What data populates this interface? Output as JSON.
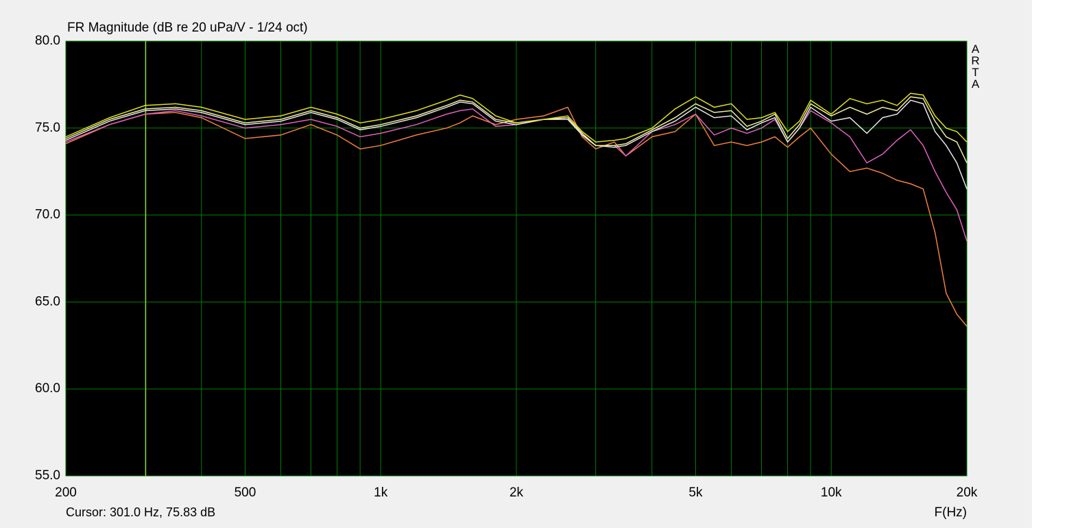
{
  "chart_data": {
    "type": "line",
    "title": "FR Magnitude (dB re 20 uPa/V - 1/24 oct)",
    "watermark": "ARTA",
    "x_label": "F(Hz)",
    "cursor": {
      "x": 301,
      "label": "Cursor: 301.0 Hz, 75.83 dB",
      "color": "#e0e040"
    },
    "log_x": true,
    "grid": true,
    "background": "#000000",
    "grid_color": "#008000",
    "xlim": [
      200,
      20000
    ],
    "ylim": [
      55,
      80
    ],
    "xticks": [
      200,
      500,
      {
        "value": 1000,
        "label": "1k"
      },
      {
        "value": 2000,
        "label": "2k"
      },
      {
        "value": 5000,
        "label": "5k"
      },
      {
        "value": 10000,
        "label": "10k"
      },
      {
        "value": 20000,
        "label": "20k"
      }
    ],
    "xgrid_minor": [
      300,
      400,
      600,
      700,
      800,
      900,
      3000,
      4000,
      6000,
      7000,
      8000,
      9000
    ],
    "yticks": [
      {
        "value": 55,
        "label": "55.0"
      },
      {
        "value": 60,
        "label": "60.0"
      },
      {
        "value": 65,
        "label": "65.0"
      },
      {
        "value": 70,
        "label": "70.0"
      },
      {
        "value": 75,
        "label": "75.0"
      },
      {
        "value": 80,
        "label": "80.0"
      }
    ],
    "x": [
      200,
      250,
      300,
      350,
      400,
      500,
      600,
      700,
      800,
      900,
      1000,
      1200,
      1400,
      1500,
      1600,
      1800,
      2000,
      2300,
      2600,
      2800,
      3000,
      3300,
      3500,
      4000,
      4500,
      5000,
      5500,
      6000,
      6500,
      7000,
      7500,
      8000,
      8500,
      9000,
      10000,
      11000,
      12000,
      13000,
      14000,
      15000,
      16000,
      17000,
      18000,
      19000,
      20000
    ],
    "series": [
      {
        "color": "#f08040",
        "values": [
          74.1,
          75.2,
          75.8,
          75.9,
          75.6,
          74.4,
          74.6,
          75.2,
          74.6,
          73.8,
          74.0,
          74.6,
          75.0,
          75.3,
          75.7,
          75.2,
          75.5,
          75.7,
          76.2,
          74.5,
          73.8,
          74.2,
          73.4,
          74.5,
          74.8,
          75.8,
          74.0,
          74.2,
          74.0,
          74.2,
          74.5,
          73.9,
          74.5,
          75.0,
          73.5,
          72.5,
          72.7,
          72.4,
          72.0,
          71.8,
          71.5,
          69.0,
          65.5,
          64.3,
          63.6
        ]
      },
      {
        "color": "#e060c0",
        "values": [
          74.2,
          75.2,
          75.8,
          76.0,
          75.7,
          75.0,
          75.2,
          75.5,
          75.1,
          74.5,
          74.7,
          75.2,
          75.8,
          76.0,
          76.1,
          75.1,
          75.2,
          75.5,
          75.6,
          74.6,
          74.0,
          74.0,
          73.4,
          74.8,
          75.2,
          75.8,
          74.6,
          75.0,
          74.7,
          75.0,
          75.5,
          74.2,
          75.0,
          76.0,
          75.3,
          74.5,
          73.0,
          73.5,
          74.3,
          74.9,
          74.0,
          72.5,
          71.3,
          70.3,
          68.5
        ]
      },
      {
        "color": "#e8e8e8",
        "values": [
          74.3,
          75.4,
          76.0,
          76.1,
          75.9,
          75.2,
          75.4,
          75.9,
          75.5,
          74.9,
          75.1,
          75.6,
          76.2,
          76.5,
          76.4,
          75.4,
          75.2,
          75.5,
          75.5,
          74.6,
          74.0,
          73.9,
          74.0,
          74.8,
          75.4,
          76.2,
          75.6,
          75.7,
          74.9,
          75.3,
          75.6,
          74.2,
          75.0,
          76.2,
          75.4,
          75.6,
          74.7,
          75.6,
          75.8,
          76.6,
          76.4,
          74.8,
          74.0,
          73.0,
          71.5
        ]
      },
      {
        "color": "#f0f0a0",
        "values": [
          74.4,
          75.5,
          76.1,
          76.2,
          76.0,
          75.3,
          75.5,
          76.0,
          75.6,
          75.0,
          75.2,
          75.7,
          76.3,
          76.6,
          76.5,
          75.5,
          75.3,
          75.5,
          75.6,
          74.7,
          74.0,
          74.0,
          74.1,
          74.9,
          75.6,
          76.4,
          75.9,
          76.0,
          75.1,
          75.4,
          75.8,
          74.4,
          75.2,
          76.4,
          75.7,
          76.2,
          75.8,
          76.2,
          76.0,
          76.8,
          76.7,
          75.4,
          74.5,
          74.2,
          73.0
        ]
      },
      {
        "color": "#e0e020",
        "values": [
          74.5,
          75.6,
          76.3,
          76.4,
          76.2,
          75.5,
          75.7,
          76.2,
          75.8,
          75.3,
          75.5,
          76.0,
          76.6,
          76.9,
          76.7,
          75.7,
          75.3,
          75.5,
          75.7,
          74.8,
          74.2,
          74.3,
          74.4,
          75.0,
          76.1,
          76.8,
          76.2,
          76.4,
          75.5,
          75.6,
          75.9,
          74.8,
          75.4,
          76.6,
          75.8,
          76.7,
          76.4,
          76.6,
          76.3,
          77.0,
          76.9,
          75.7,
          75.0,
          74.8,
          74.2
        ]
      }
    ]
  }
}
